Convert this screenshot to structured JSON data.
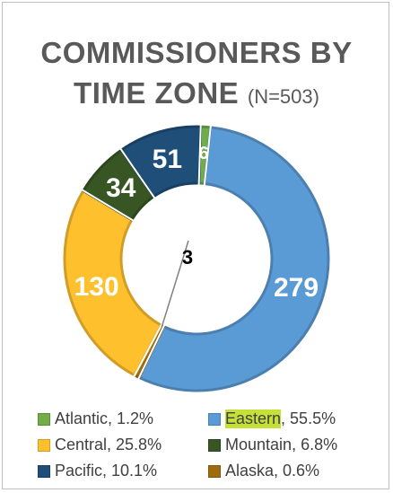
{
  "chart_data": {
    "type": "pie",
    "title_line1": "COMMISSIONERS BY",
    "title_line2": "TIME ZONE",
    "title_suffix": "(N=503)",
    "slices": [
      {
        "name": "Atlantic",
        "value": 6,
        "label": "6",
        "legend_pct": "1.2%",
        "color": "#70ad47"
      },
      {
        "name": "Eastern",
        "value": 279,
        "label": "279",
        "legend_pct": "55.5%",
        "color": "#5b9bd5"
      },
      {
        "name": "Alaska",
        "value": 3,
        "label": "3",
        "legend_pct": "0.6%",
        "color": "#9e6b10"
      },
      {
        "name": "Central",
        "value": 130,
        "label": "130",
        "legend_pct": "25.8%",
        "color": "#ffc02e"
      },
      {
        "name": "Mountain",
        "value": 34,
        "label": "34",
        "legend_pct": "6.8%",
        "color": "#375623"
      },
      {
        "name": "Pacific",
        "value": 51,
        "label": "51",
        "legend_pct": "10.1%",
        "color": "#1f4e79"
      }
    ],
    "legend": [
      {
        "name": "Atlantic",
        "pct": "1.2%",
        "color": "#70ad47",
        "highlight": false
      },
      {
        "name": "Eastern",
        "pct": "55.5%",
        "color": "#5b9bd5",
        "highlight": true
      },
      {
        "name": "Central",
        "pct": "25.8%",
        "color": "#ffc02e",
        "highlight": false
      },
      {
        "name": "Mountain",
        "pct": "6.8%",
        "color": "#375623",
        "highlight": false
      },
      {
        "name": "Pacific",
        "pct": "10.1%",
        "color": "#1f4e79",
        "highlight": false
      },
      {
        "name": "Alaska",
        "pct": "0.6%",
        "color": "#9e6b10",
        "highlight": false
      }
    ],
    "legend_placement": "bottom",
    "donut": true
  }
}
